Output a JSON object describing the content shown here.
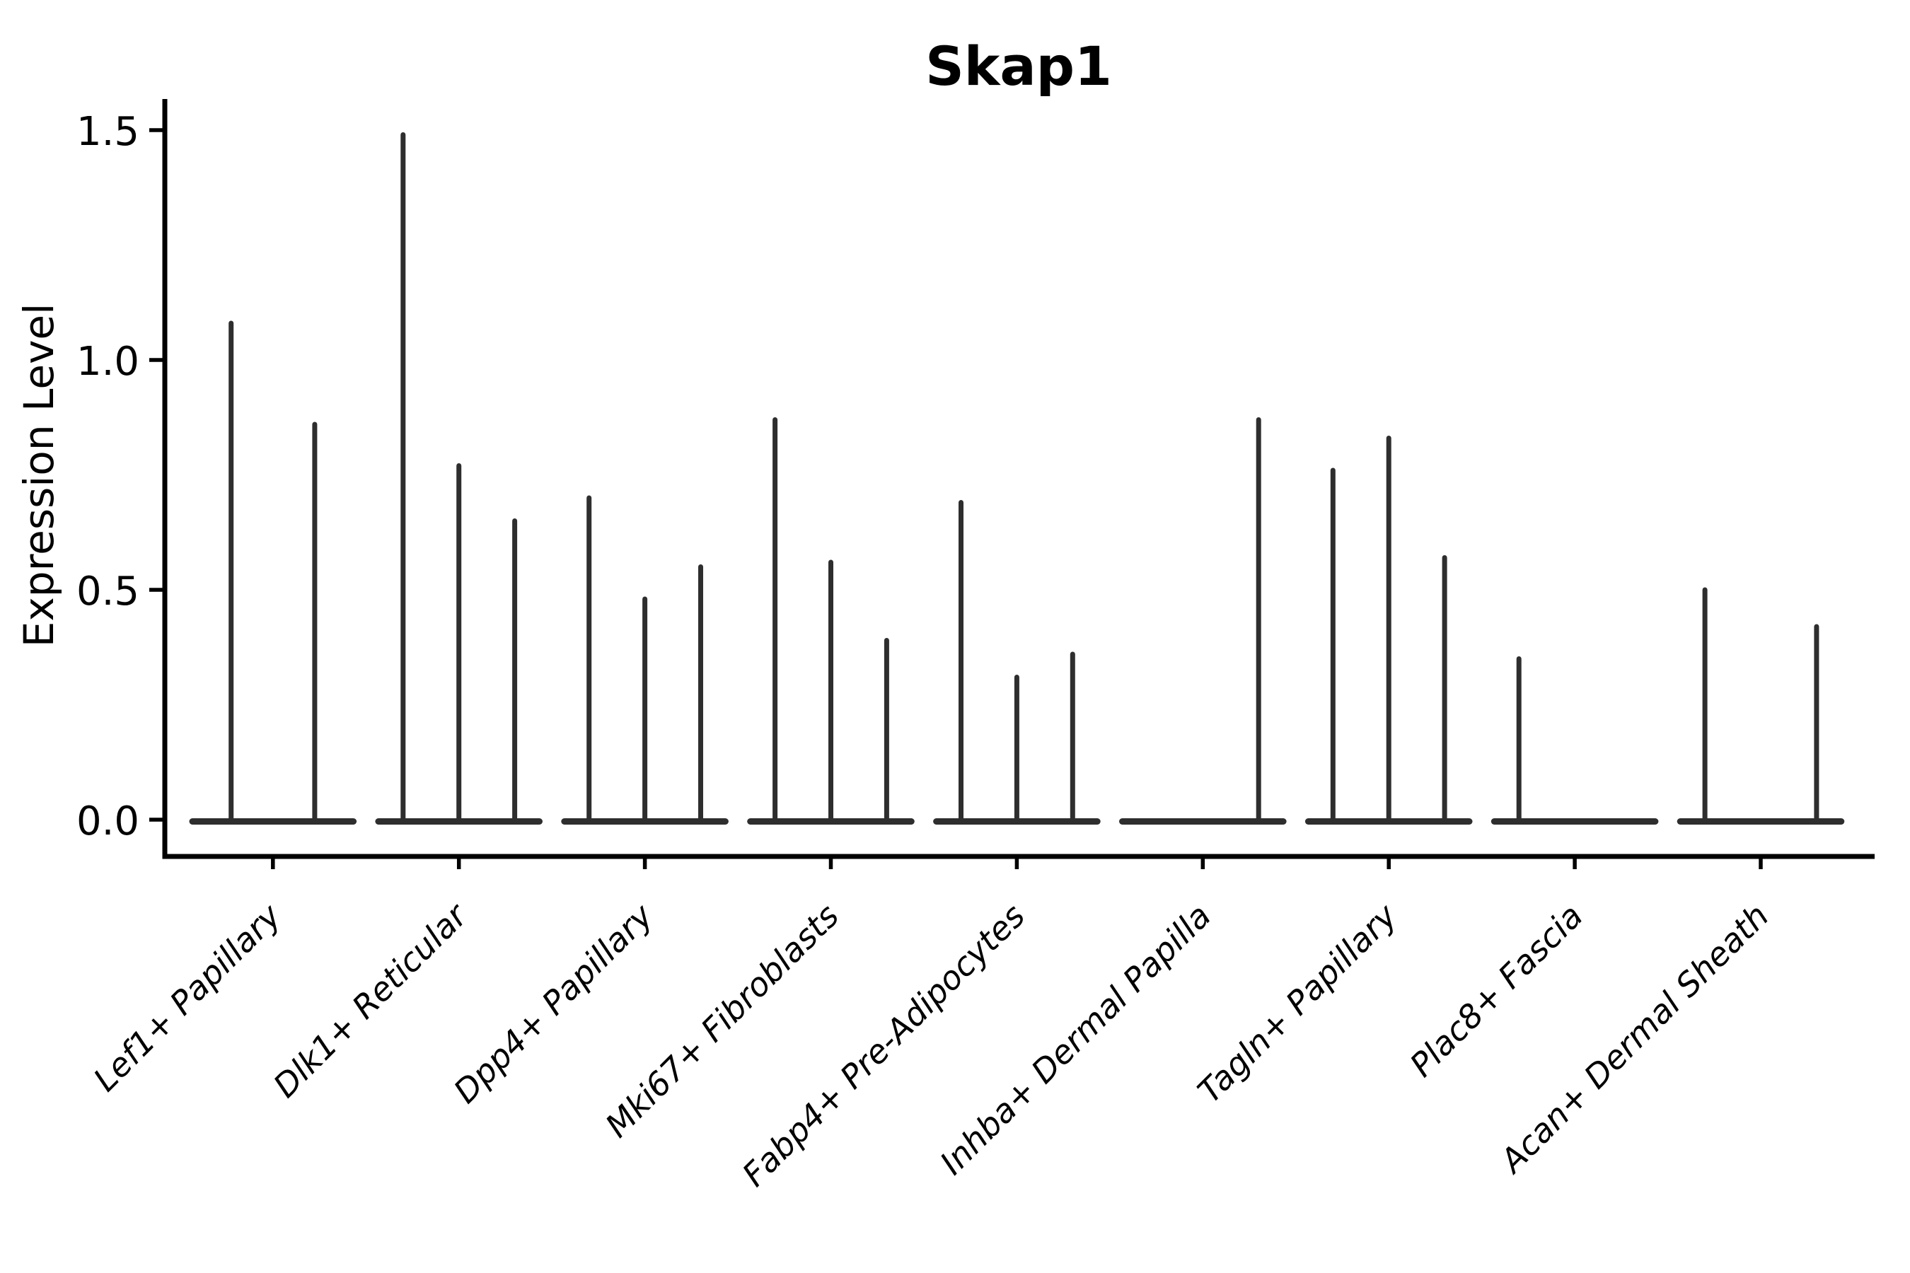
{
  "chart_data": {
    "type": "violin",
    "title": "Skap1",
    "ylabel": "Expression Level",
    "xlabel": "",
    "ylim": [
      -0.08,
      1.56
    ],
    "grid": false,
    "legend": "none",
    "yticks": [
      "0.0",
      "0.5",
      "1.0",
      "1.5"
    ],
    "ytick_values": [
      0.0,
      0.5,
      1.0,
      1.5
    ],
    "categories": [
      "Lef1+ Papillary",
      "Dlk1+ Reticular",
      "Dpp4+ Papillary",
      "Mki67+ Fibroblasts",
      "Fabp4+ Pre-Adipocytes",
      "Inhba+ Dermal Papilla",
      "Tagln+ Papillary",
      "Plac8+ Fascia",
      "Acan+ Dermal Sheath"
    ],
    "groups": [
      {
        "category": "Lef1+ Papillary",
        "violin_maxima": [
          1.08,
          0.86
        ]
      },
      {
        "category": "Dlk1+ Reticular",
        "violin_maxima": [
          1.49,
          0.77,
          0.65
        ]
      },
      {
        "category": "Dpp4+ Papillary",
        "violin_maxima": [
          0.7,
          0.48,
          0.55
        ]
      },
      {
        "category": "Mki67+ Fibroblasts",
        "violin_maxima": [
          0.87,
          0.56,
          0.39
        ]
      },
      {
        "category": "Fabp4+ Pre-Adipocytes",
        "violin_maxima": [
          0.69,
          0.31,
          0.36
        ]
      },
      {
        "category": "Inhba+ Dermal Papilla",
        "violin_maxima": [
          0.0,
          0.0,
          0.87
        ]
      },
      {
        "category": "Tagln+ Papillary",
        "violin_maxima": [
          0.76,
          0.83,
          0.57
        ]
      },
      {
        "category": "Plac8+ Fascia",
        "violin_maxima": [
          0.35,
          0.0,
          0.0
        ]
      },
      {
        "category": "Acan+ Dermal Sheath",
        "violin_maxima": [
          0.5,
          0.0,
          0.42
        ]
      }
    ],
    "violin_color": "#2e2e2e",
    "axis_color": "#000000"
  }
}
